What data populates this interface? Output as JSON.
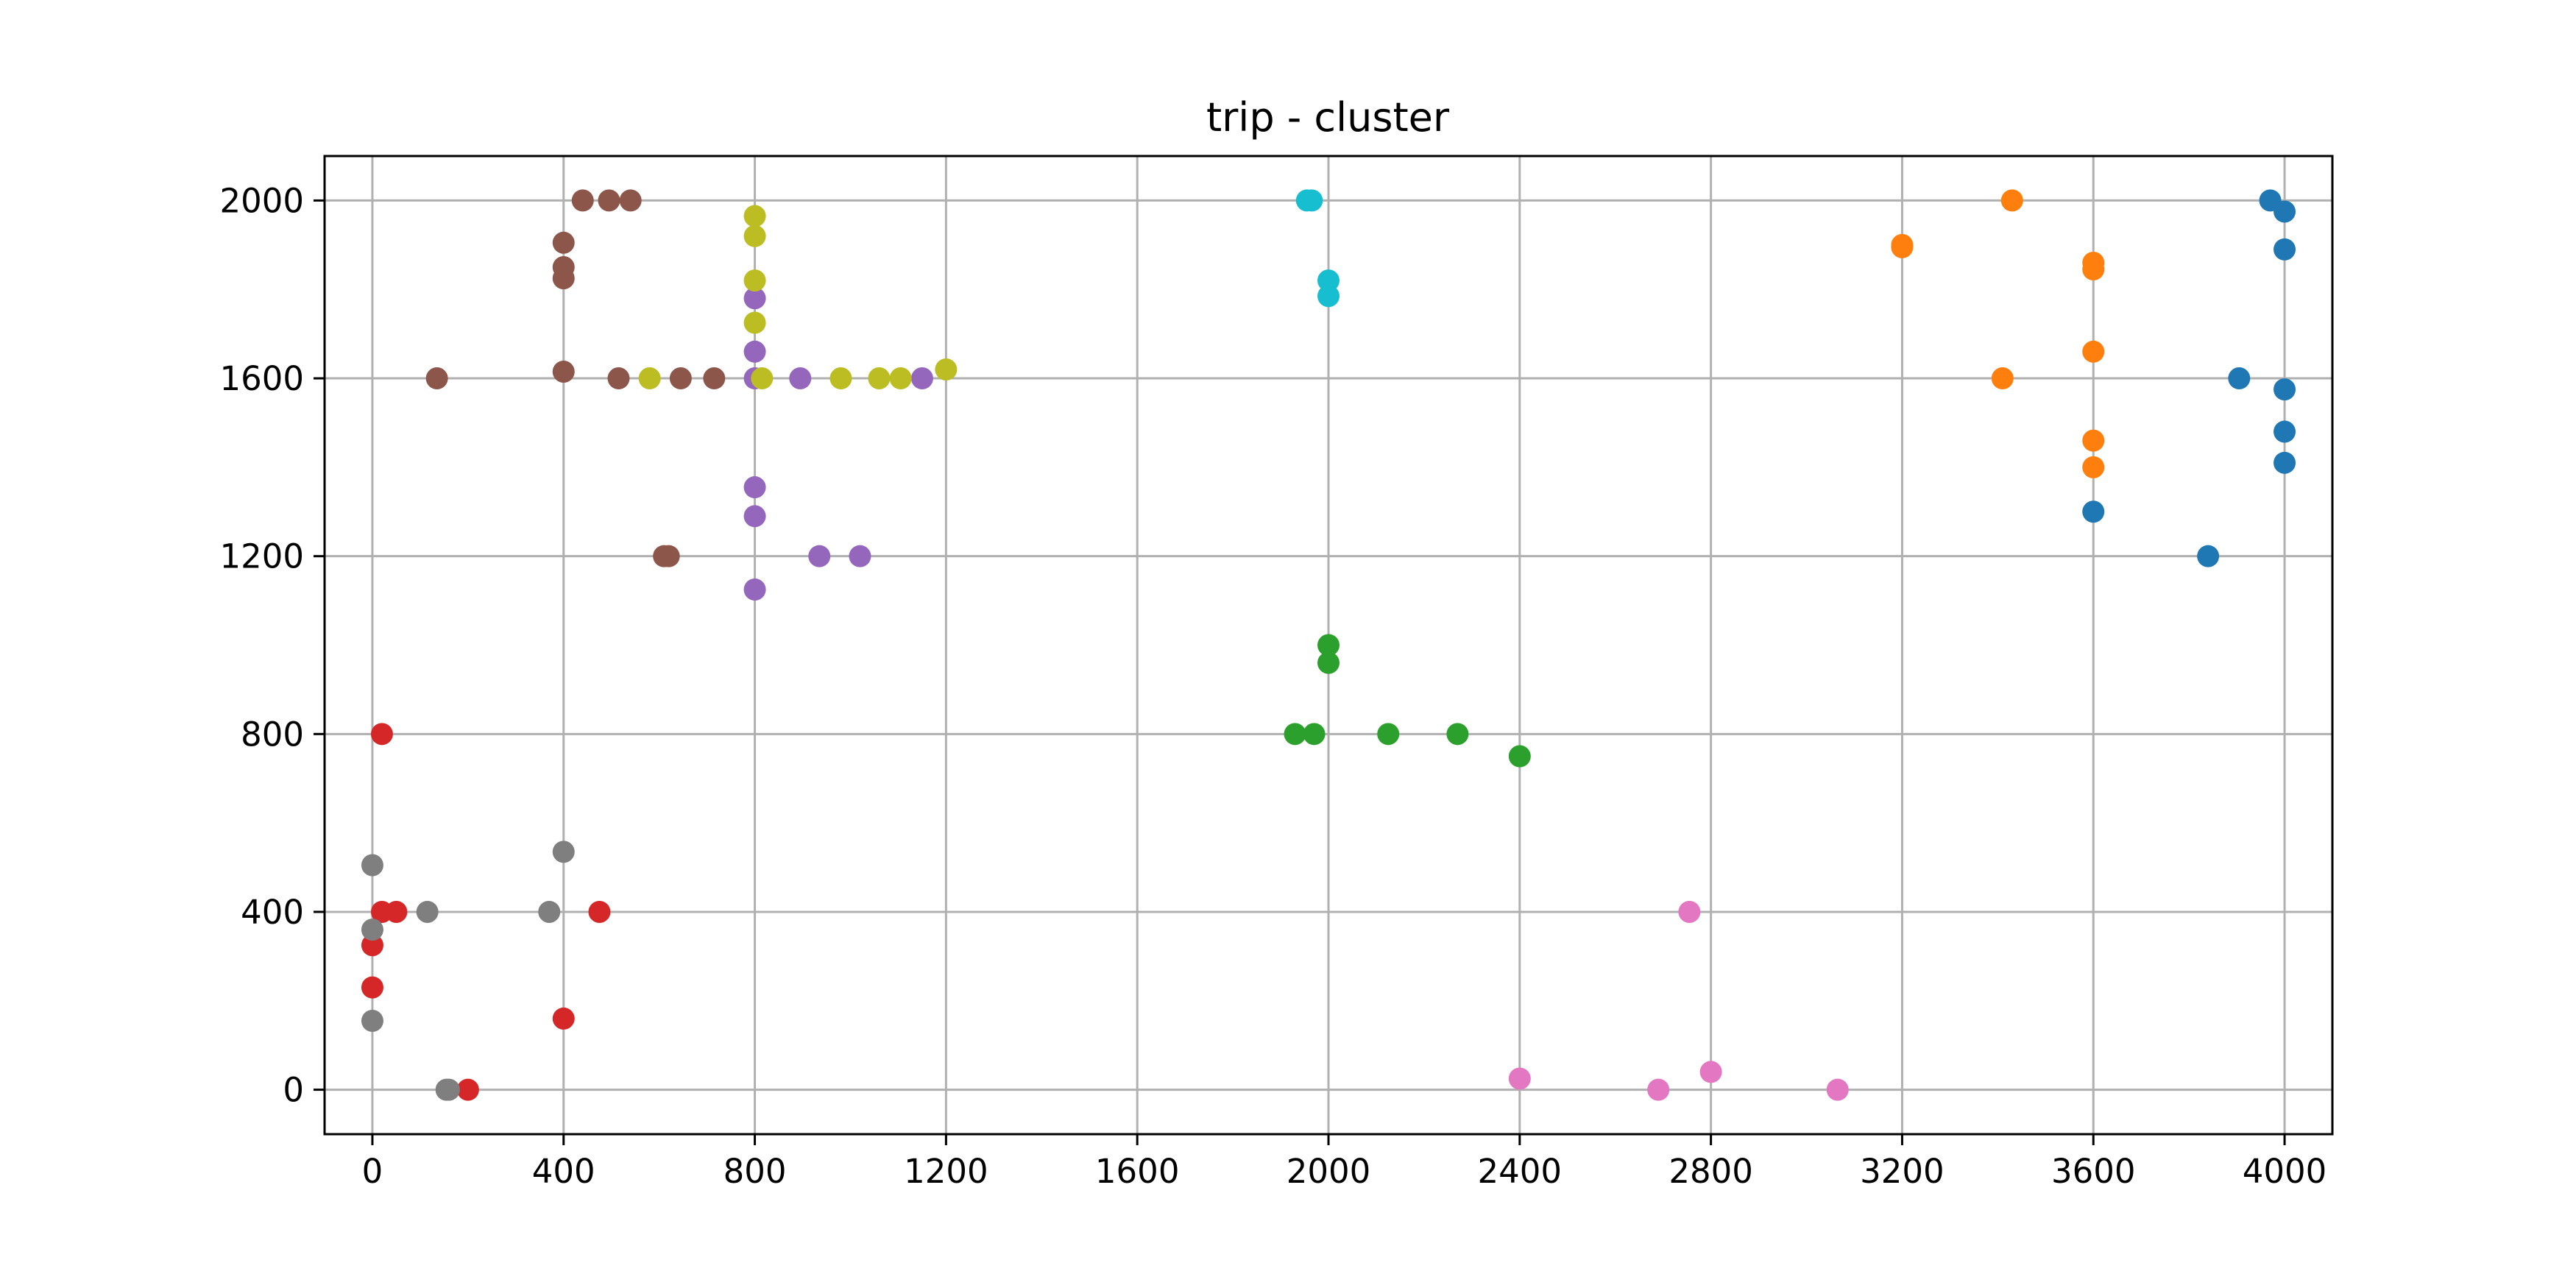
{
  "chart_data": {
    "type": "scatter",
    "title": "trip - cluster",
    "xlabel": "",
    "ylabel": "",
    "xlim": [
      -100,
      4100
    ],
    "ylim": [
      -100,
      2100
    ],
    "xticks": [
      0,
      400,
      800,
      1200,
      1600,
      2000,
      2400,
      2800,
      3200,
      3600,
      4000
    ],
    "yticks": [
      0,
      400,
      800,
      1200,
      1600,
      2000
    ],
    "grid": true,
    "legend": "none",
    "series": [
      {
        "color": "#1f77b4",
        "points": [
          [
            3970,
            2000
          ],
          [
            4000,
            1975
          ],
          [
            4000,
            1890
          ],
          [
            3905,
            1600
          ],
          [
            4000,
            1575
          ],
          [
            4000,
            1480
          ],
          [
            4000,
            1410
          ],
          [
            3600,
            1300
          ],
          [
            3840,
            1200
          ]
        ]
      },
      {
        "color": "#ff7f0e",
        "points": [
          [
            3200,
            1900
          ],
          [
            3200,
            1895
          ],
          [
            3430,
            2000
          ],
          [
            3600,
            1860
          ],
          [
            3600,
            1845
          ],
          [
            3600,
            1660
          ],
          [
            3410,
            1600
          ],
          [
            3600,
            1460
          ],
          [
            3600,
            1400
          ]
        ]
      },
      {
        "color": "#2ca02c",
        "points": [
          [
            2000,
            1000
          ],
          [
            2000,
            960
          ],
          [
            1930,
            800
          ],
          [
            1970,
            800
          ],
          [
            2125,
            800
          ],
          [
            2270,
            800
          ],
          [
            2400,
            750
          ]
        ]
      },
      {
        "color": "#d62728",
        "points": [
          [
            20,
            800
          ],
          [
            20,
            400
          ],
          [
            50,
            400
          ],
          [
            475,
            400
          ],
          [
            0,
            325
          ],
          [
            0,
            230
          ],
          [
            400,
            160
          ],
          [
            200,
            0
          ]
        ]
      },
      {
        "color": "#9467bd",
        "points": [
          [
            800,
            1780
          ],
          [
            800,
            1660
          ],
          [
            800,
            1600
          ],
          [
            895,
            1600
          ],
          [
            1150,
            1600
          ],
          [
            800,
            1355
          ],
          [
            800,
            1290
          ],
          [
            935,
            1200
          ],
          [
            1020,
            1200
          ],
          [
            800,
            1125
          ]
        ]
      },
      {
        "color": "#8c564b",
        "points": [
          [
            440,
            2000
          ],
          [
            495,
            2000
          ],
          [
            540,
            2000
          ],
          [
            400,
            1905
          ],
          [
            400,
            1850
          ],
          [
            400,
            1825
          ],
          [
            400,
            1615
          ],
          [
            135,
            1600
          ],
          [
            515,
            1600
          ],
          [
            645,
            1600
          ],
          [
            715,
            1600
          ],
          [
            610,
            1200
          ],
          [
            620,
            1200
          ]
        ]
      },
      {
        "color": "#e377c2",
        "points": [
          [
            2755,
            400
          ],
          [
            2400,
            25
          ],
          [
            2690,
            0
          ],
          [
            2800,
            40
          ],
          [
            3065,
            0
          ]
        ]
      },
      {
        "color": "#7f7f7f",
        "points": [
          [
            0,
            505
          ],
          [
            400,
            535
          ],
          [
            115,
            400
          ],
          [
            370,
            400
          ],
          [
            0,
            360
          ],
          [
            0,
            155
          ],
          [
            155,
            0
          ],
          [
            160,
            0
          ]
        ]
      },
      {
        "color": "#bcbd22",
        "points": [
          [
            800,
            1965
          ],
          [
            800,
            1920
          ],
          [
            800,
            1820
          ],
          [
            800,
            1725
          ],
          [
            580,
            1600
          ],
          [
            815,
            1600
          ],
          [
            980,
            1600
          ],
          [
            1060,
            1600
          ],
          [
            1105,
            1600
          ],
          [
            1200,
            1620
          ]
        ]
      },
      {
        "color": "#17becf",
        "points": [
          [
            1955,
            2000
          ],
          [
            1965,
            2000
          ],
          [
            2000,
            1820
          ],
          [
            2000,
            1785
          ]
        ]
      }
    ]
  }
}
